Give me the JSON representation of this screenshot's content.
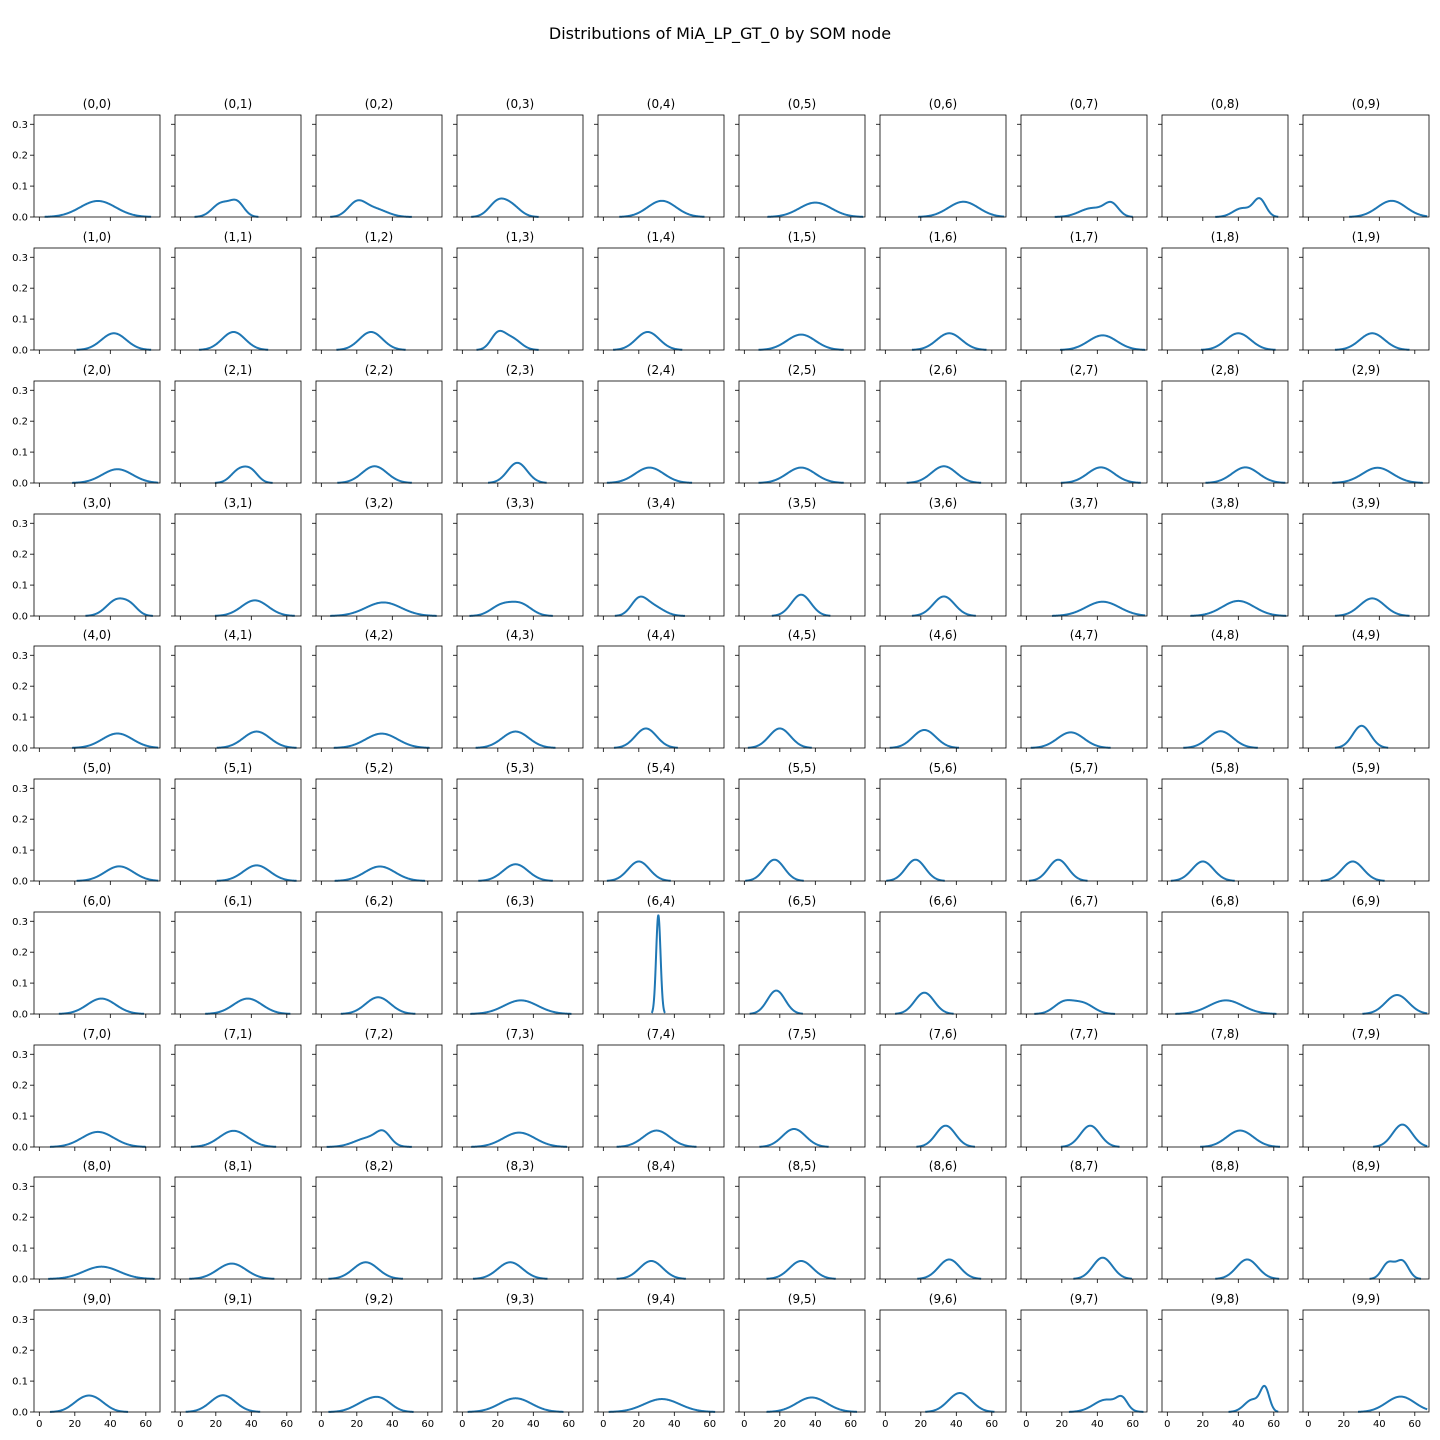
{
  "figure": {
    "title": "Distributions of MiA_LP_GT_0 by SOM node"
  },
  "chart_data": {
    "type": "line",
    "kind": "kde-density-small-multiples",
    "grid": false,
    "legend": "none",
    "line_color": "#1f77b4",
    "rows": 10,
    "cols": 10,
    "xlim": [
      -3,
      68
    ],
    "ylim": [
      0,
      0.33
    ],
    "xticks": [
      0,
      20,
      40,
      60
    ],
    "yticks": [
      0.0,
      0.1,
      0.2,
      0.3
    ],
    "ytick_labels": [
      "0.0",
      "0.1",
      "0.2",
      "0.3"
    ],
    "xtick_labels": [
      "0",
      "20",
      "40",
      "60"
    ],
    "series": [
      {
        "name": "(0,0)",
        "components": [
          {
            "mu": 33,
            "sd": 10,
            "w": 1.3
          }
        ]
      },
      {
        "name": "(0,1)",
        "components": [
          {
            "mu": 23,
            "sd": 5,
            "w": 0.55
          },
          {
            "mu": 32,
            "sd": 4,
            "w": 0.45
          }
        ]
      },
      {
        "name": "(0,2)",
        "components": [
          {
            "mu": 20,
            "sd": 5,
            "w": 0.55
          },
          {
            "mu": 30,
            "sd": 7,
            "w": 0.45
          }
        ]
      },
      {
        "name": "(0,3)",
        "components": [
          {
            "mu": 20,
            "sd": 5,
            "w": 0.6
          },
          {
            "mu": 28,
            "sd": 5,
            "w": 0.4
          }
        ]
      },
      {
        "name": "(0,4)",
        "components": [
          {
            "mu": 33,
            "sd": 8,
            "w": 1.05
          }
        ]
      },
      {
        "name": "(0,5)",
        "components": [
          {
            "mu": 40,
            "sd": 9,
            "w": 1.05
          }
        ]
      },
      {
        "name": "(0,6)",
        "components": [
          {
            "mu": 44,
            "sd": 8.5,
            "w": 1.05
          }
        ]
      },
      {
        "name": "(0,7)",
        "components": [
          {
            "mu": 37,
            "sd": 7,
            "w": 0.5
          },
          {
            "mu": 48,
            "sd": 4,
            "w": 0.4
          }
        ]
      },
      {
        "name": "(0,8)",
        "components": [
          {
            "mu": 42,
            "sd": 5,
            "w": 0.35
          },
          {
            "mu": 52,
            "sd": 3.5,
            "w": 0.5
          }
        ]
      },
      {
        "name": "(0,9)",
        "components": [
          {
            "mu": 47,
            "sd": 8,
            "w": 1.05
          }
        ]
      },
      {
        "name": "(1,0)",
        "components": [
          {
            "mu": 42,
            "sd": 7,
            "w": 0.95
          }
        ]
      },
      {
        "name": "(1,1)",
        "components": [
          {
            "mu": 30,
            "sd": 6.5,
            "w": 0.95
          }
        ]
      },
      {
        "name": "(1,2)",
        "components": [
          {
            "mu": 28,
            "sd": 6.5,
            "w": 0.95
          }
        ]
      },
      {
        "name": "(1,3)",
        "components": [
          {
            "mu": 20,
            "sd": 4,
            "w": 0.5
          },
          {
            "mu": 28,
            "sd": 5,
            "w": 0.45
          }
        ]
      },
      {
        "name": "(1,4)",
        "components": [
          {
            "mu": 25,
            "sd": 6.5,
            "w": 0.95
          }
        ]
      },
      {
        "name": "(1,5)",
        "components": [
          {
            "mu": 32,
            "sd": 8,
            "w": 1.0
          }
        ]
      },
      {
        "name": "(1,6)",
        "components": [
          {
            "mu": 36,
            "sd": 7,
            "w": 0.95
          }
        ]
      },
      {
        "name": "(1,7)",
        "components": [
          {
            "mu": 43,
            "sd": 8,
            "w": 0.95
          }
        ]
      },
      {
        "name": "(1,8)",
        "components": [
          {
            "mu": 40,
            "sd": 7,
            "w": 0.95
          }
        ]
      },
      {
        "name": "(1,9)",
        "components": [
          {
            "mu": 36,
            "sd": 7,
            "w": 0.95
          }
        ]
      },
      {
        "name": "(2,0)",
        "components": [
          {
            "mu": 44,
            "sd": 8.5,
            "w": 0.95
          }
        ]
      },
      {
        "name": "(2,1)",
        "components": [
          {
            "mu": 33,
            "sd": 4.5,
            "w": 0.45
          },
          {
            "mu": 40,
            "sd": 4,
            "w": 0.35
          }
        ]
      },
      {
        "name": "(2,2)",
        "components": [
          {
            "mu": 30,
            "sd": 7,
            "w": 0.95
          }
        ]
      },
      {
        "name": "(2,3)",
        "components": [
          {
            "mu": 31,
            "sd": 5.5,
            "w": 0.9
          }
        ]
      },
      {
        "name": "(2,4)",
        "components": [
          {
            "mu": 26,
            "sd": 8,
            "w": 1.0
          }
        ]
      },
      {
        "name": "(2,5)",
        "components": [
          {
            "mu": 32,
            "sd": 8,
            "w": 1.0
          }
        ]
      },
      {
        "name": "(2,6)",
        "components": [
          {
            "mu": 33,
            "sd": 7,
            "w": 0.95
          }
        ]
      },
      {
        "name": "(2,7)",
        "components": [
          {
            "mu": 42,
            "sd": 7.5,
            "w": 0.95
          }
        ]
      },
      {
        "name": "(2,8)",
        "components": [
          {
            "mu": 44,
            "sd": 7.5,
            "w": 0.95
          }
        ]
      },
      {
        "name": "(2,9)",
        "components": [
          {
            "mu": 39,
            "sd": 8.5,
            "w": 1.05
          }
        ]
      },
      {
        "name": "(3,0)",
        "components": [
          {
            "mu": 44,
            "sd": 6,
            "w": 0.8
          },
          {
            "mu": 52,
            "sd": 4,
            "w": 0.2
          }
        ]
      },
      {
        "name": "(3,1)",
        "components": [
          {
            "mu": 42,
            "sd": 7.5,
            "w": 0.95
          }
        ]
      },
      {
        "name": "(3,2)",
        "components": [
          {
            "mu": 35,
            "sd": 10,
            "w": 1.1
          }
        ]
      },
      {
        "name": "(3,3)",
        "components": [
          {
            "mu": 22,
            "sd": 6,
            "w": 0.5
          },
          {
            "mu": 33,
            "sd": 6,
            "w": 0.55
          }
        ]
      },
      {
        "name": "(3,4)",
        "components": [
          {
            "mu": 20,
            "sd": 4.5,
            "w": 0.55
          },
          {
            "mu": 28,
            "sd": 6,
            "w": 0.45
          }
        ]
      },
      {
        "name": "(3,5)",
        "components": [
          {
            "mu": 32,
            "sd": 5.5,
            "w": 0.95
          }
        ]
      },
      {
        "name": "(3,6)",
        "components": [
          {
            "mu": 33,
            "sd": 6,
            "w": 0.95
          }
        ]
      },
      {
        "name": "(3,7)",
        "components": [
          {
            "mu": 43,
            "sd": 9.5,
            "w": 1.1
          }
        ]
      },
      {
        "name": "(3,8)",
        "components": [
          {
            "mu": 40,
            "sd": 9,
            "w": 1.1
          }
        ]
      },
      {
        "name": "(3,9)",
        "components": [
          {
            "mu": 36,
            "sd": 7,
            "w": 1.0
          }
        ]
      },
      {
        "name": "(4,0)",
        "components": [
          {
            "mu": 44,
            "sd": 8.5,
            "w": 1.0
          }
        ]
      },
      {
        "name": "(4,1)",
        "components": [
          {
            "mu": 43,
            "sd": 7.5,
            "w": 1.0
          }
        ]
      },
      {
        "name": "(4,2)",
        "components": [
          {
            "mu": 34,
            "sd": 9,
            "w": 1.05
          }
        ]
      },
      {
        "name": "(4,3)",
        "components": [
          {
            "mu": 30,
            "sd": 7.5,
            "w": 1.0
          }
        ]
      },
      {
        "name": "(4,4)",
        "components": [
          {
            "mu": 24,
            "sd": 6,
            "w": 0.95
          }
        ]
      },
      {
        "name": "(4,5)",
        "components": [
          {
            "mu": 20,
            "sd": 6,
            "w": 0.95
          }
        ]
      },
      {
        "name": "(4,6)",
        "components": [
          {
            "mu": 22,
            "sd": 6.5,
            "w": 0.95
          }
        ]
      },
      {
        "name": "(4,7)",
        "components": [
          {
            "mu": 25,
            "sd": 7.5,
            "w": 0.95
          }
        ]
      },
      {
        "name": "(4,8)",
        "components": [
          {
            "mu": 30,
            "sd": 7,
            "w": 0.95
          }
        ]
      },
      {
        "name": "(4,9)",
        "components": [
          {
            "mu": 30,
            "sd": 5,
            "w": 0.9
          }
        ]
      },
      {
        "name": "(5,0)",
        "components": [
          {
            "mu": 45,
            "sd": 8,
            "w": 0.95
          }
        ]
      },
      {
        "name": "(5,1)",
        "components": [
          {
            "mu": 43,
            "sd": 7.5,
            "w": 0.95
          }
        ]
      },
      {
        "name": "(5,2)",
        "components": [
          {
            "mu": 33,
            "sd": 8.5,
            "w": 1.0
          }
        ]
      },
      {
        "name": "(5,3)",
        "components": [
          {
            "mu": 30,
            "sd": 7,
            "w": 0.95
          }
        ]
      },
      {
        "name": "(5,4)",
        "components": [
          {
            "mu": 20,
            "sd": 6,
            "w": 0.95
          }
        ]
      },
      {
        "name": "(5,5)",
        "components": [
          {
            "mu": 17,
            "sd": 5.5,
            "w": 0.95
          }
        ]
      },
      {
        "name": "(5,6)",
        "components": [
          {
            "mu": 17,
            "sd": 5.5,
            "w": 0.95
          }
        ]
      },
      {
        "name": "(5,7)",
        "components": [
          {
            "mu": 18,
            "sd": 5.5,
            "w": 0.95
          }
        ]
      },
      {
        "name": "(5,8)",
        "components": [
          {
            "mu": 20,
            "sd": 6,
            "w": 0.95
          }
        ]
      },
      {
        "name": "(5,9)",
        "components": [
          {
            "mu": 25,
            "sd": 6,
            "w": 0.95
          }
        ]
      },
      {
        "name": "(6,0)",
        "components": [
          {
            "mu": 35,
            "sd": 8,
            "w": 1.0
          }
        ]
      },
      {
        "name": "(6,1)",
        "components": [
          {
            "mu": 38,
            "sd": 8,
            "w": 1.0
          }
        ]
      },
      {
        "name": "(6,2)",
        "components": [
          {
            "mu": 32,
            "sd": 7,
            "w": 0.95
          }
        ]
      },
      {
        "name": "(6,3)",
        "components": [
          {
            "mu": 33,
            "sd": 9.5,
            "w": 1.05
          }
        ]
      },
      {
        "name": "(6,4)",
        "components": [
          {
            "mu": 31,
            "sd": 1.25,
            "w": 1.0
          }
        ]
      },
      {
        "name": "(6,5)",
        "components": [
          {
            "mu": 18,
            "sd": 5,
            "w": 0.95
          }
        ]
      },
      {
        "name": "(6,6)",
        "components": [
          {
            "mu": 22,
            "sd": 5.5,
            "w": 0.95
          }
        ]
      },
      {
        "name": "(6,7)",
        "components": [
          {
            "mu": 21,
            "sd": 5.5,
            "w": 0.5
          },
          {
            "mu": 32,
            "sd": 6,
            "w": 0.5
          }
        ]
      },
      {
        "name": "(6,8)",
        "components": [
          {
            "mu": 33,
            "sd": 9.5,
            "w": 1.05
          }
        ]
      },
      {
        "name": "(6,9)",
        "components": [
          {
            "mu": 50,
            "sd": 6.5,
            "w": 1.0
          }
        ]
      },
      {
        "name": "(7,0)",
        "components": [
          {
            "mu": 33,
            "sd": 9,
            "w": 1.1
          }
        ]
      },
      {
        "name": "(7,1)",
        "components": [
          {
            "mu": 30,
            "sd": 8,
            "w": 1.05
          }
        ]
      },
      {
        "name": "(7,2)",
        "components": [
          {
            "mu": 27,
            "sd": 8,
            "w": 0.6
          },
          {
            "mu": 35,
            "sd": 4,
            "w": 0.35
          }
        ]
      },
      {
        "name": "(7,3)",
        "components": [
          {
            "mu": 32,
            "sd": 9,
            "w": 1.05
          }
        ]
      },
      {
        "name": "(7,4)",
        "components": [
          {
            "mu": 30,
            "sd": 7.5,
            "w": 1.0
          }
        ]
      },
      {
        "name": "(7,5)",
        "components": [
          {
            "mu": 28,
            "sd": 6.5,
            "w": 0.95
          }
        ]
      },
      {
        "name": "(7,6)",
        "components": [
          {
            "mu": 34,
            "sd": 5.5,
            "w": 0.95
          }
        ]
      },
      {
        "name": "(7,7)",
        "components": [
          {
            "mu": 36,
            "sd": 5.5,
            "w": 0.95
          }
        ]
      },
      {
        "name": "(7,8)",
        "components": [
          {
            "mu": 41,
            "sd": 7.5,
            "w": 1.0
          }
        ]
      },
      {
        "name": "(7,9)",
        "components": [
          {
            "mu": 53,
            "sd": 5.5,
            "w": 1.0
          }
        ]
      },
      {
        "name": "(8,0)",
        "components": [
          {
            "mu": 35,
            "sd": 10,
            "w": 1.0
          }
        ]
      },
      {
        "name": "(8,1)",
        "components": [
          {
            "mu": 29,
            "sd": 8,
            "w": 1.0
          }
        ]
      },
      {
        "name": "(8,2)",
        "components": [
          {
            "mu": 25,
            "sd": 7,
            "w": 0.95
          }
        ]
      },
      {
        "name": "(8,3)",
        "components": [
          {
            "mu": 27,
            "sd": 7,
            "w": 0.95
          }
        ]
      },
      {
        "name": "(8,4)",
        "components": [
          {
            "mu": 27,
            "sd": 6.5,
            "w": 0.95
          }
        ]
      },
      {
        "name": "(8,5)",
        "components": [
          {
            "mu": 32,
            "sd": 6.5,
            "w": 0.95
          }
        ]
      },
      {
        "name": "(8,6)",
        "components": [
          {
            "mu": 36,
            "sd": 6,
            "w": 0.95
          }
        ]
      },
      {
        "name": "(8,7)",
        "components": [
          {
            "mu": 43,
            "sd": 5.5,
            "w": 0.95
          }
        ]
      },
      {
        "name": "(8,8)",
        "components": [
          {
            "mu": 45,
            "sd": 6,
            "w": 0.95
          }
        ]
      },
      {
        "name": "(8,9)",
        "components": [
          {
            "mu": 45,
            "sd": 3.5,
            "w": 0.45
          },
          {
            "mu": 53,
            "sd": 3.5,
            "w": 0.5
          }
        ]
      },
      {
        "name": "(9,0)",
        "components": [
          {
            "mu": 24,
            "sd": 6,
            "w": 0.5
          },
          {
            "mu": 32,
            "sd": 6,
            "w": 0.5
          }
        ]
      },
      {
        "name": "(9,1)",
        "components": [
          {
            "mu": 24,
            "sd": 7,
            "w": 0.95
          }
        ]
      },
      {
        "name": "(9,2)",
        "components": [
          {
            "mu": 25,
            "sd": 7,
            "w": 0.5
          },
          {
            "mu": 34,
            "sd": 6,
            "w": 0.5
          }
        ]
      },
      {
        "name": "(9,3)",
        "components": [
          {
            "mu": 30,
            "sd": 9,
            "w": 1.0
          }
        ]
      },
      {
        "name": "(9,4)",
        "components": [
          {
            "mu": 33,
            "sd": 10,
            "w": 1.05
          }
        ]
      },
      {
        "name": "(9,5)",
        "components": [
          {
            "mu": 38,
            "sd": 8.5,
            "w": 1.0
          }
        ]
      },
      {
        "name": "(9,6)",
        "components": [
          {
            "mu": 42,
            "sd": 6.5,
            "w": 1.0
          }
        ]
      },
      {
        "name": "(9,7)",
        "components": [
          {
            "mu": 45,
            "sd": 7,
            "w": 0.7
          },
          {
            "mu": 54,
            "sd": 3,
            "w": 0.25
          }
        ]
      },
      {
        "name": "(9,8)",
        "components": [
          {
            "mu": 48,
            "sd": 4.5,
            "w": 0.45
          },
          {
            "mu": 55,
            "sd": 2.5,
            "w": 0.45
          }
        ]
      },
      {
        "name": "(9,9)",
        "components": [
          {
            "mu": 52,
            "sd": 8,
            "w": 1.0
          }
        ]
      }
    ]
  }
}
